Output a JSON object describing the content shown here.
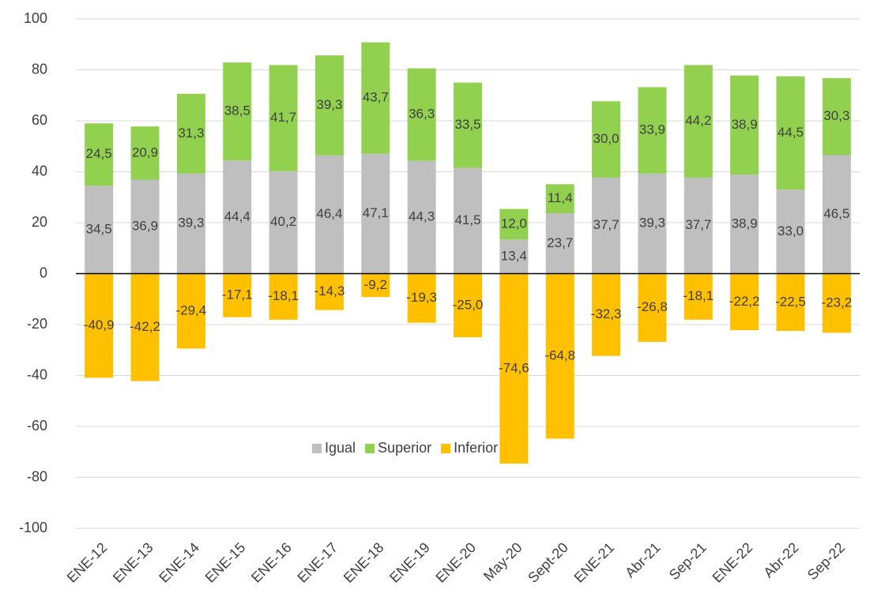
{
  "chart_data": {
    "type": "stacked_bar",
    "categories": [
      "ENE-12",
      "ENE-13",
      "ENE-14",
      "ENE-15",
      "ENE-16",
      "ENE-17",
      "ENE-18",
      "ENE-19",
      "ENE-20",
      "May-20",
      "Sept-20",
      "ENE-21",
      "Abr-21",
      "Sep-21",
      "ENE-22",
      "Abr-22",
      "Sep-22"
    ],
    "series": [
      {
        "name": "Igual",
        "color": "#bfbfbf",
        "values": [
          34.5,
          36.9,
          39.3,
          44.4,
          40.2,
          46.4,
          47.1,
          44.3,
          41.5,
          13.4,
          23.7,
          37.7,
          39.3,
          37.7,
          38.9,
          33.0,
          46.5
        ],
        "value_labels": [
          "34,5",
          "36,9",
          "39,3",
          "44,4",
          "40,2",
          "46,4",
          "47,1",
          "44,3",
          "41,5",
          "13,4",
          "23,7",
          "37,7",
          "39,3",
          "37,7",
          "38,9",
          "33,0",
          "46,5"
        ]
      },
      {
        "name": "Superior",
        "color": "#92d050",
        "values": [
          24.5,
          20.9,
          31.3,
          38.5,
          41.7,
          39.3,
          43.7,
          36.3,
          33.5,
          12.0,
          11.4,
          30.0,
          33.9,
          44.2,
          38.9,
          44.5,
          30.3
        ],
        "value_labels": [
          "24,5",
          "20,9",
          "31,3",
          "38,5",
          "41,7",
          "39,3",
          "43,7",
          "36,3",
          "33,5",
          "12,0",
          "11,4",
          "30,0",
          "33,9",
          "44,2",
          "38,9",
          "44,5",
          "30,3"
        ]
      },
      {
        "name": "Inferior",
        "color": "#ffc000",
        "values": [
          -40.9,
          -42.2,
          -29.4,
          -17.1,
          -18.1,
          -14.3,
          -9.2,
          -19.3,
          -25.0,
          -74.6,
          -64.8,
          -32.3,
          -26.8,
          -18.1,
          -22.2,
          -22.5,
          -23.2
        ],
        "value_labels": [
          "-40,9",
          "-42,2",
          "-29,4",
          "-17,1",
          "-18,1",
          "-14,3",
          "-9,2",
          "-19,3",
          "-25,0",
          "-74,6",
          "-64,8",
          "-32,3",
          "-26,8",
          "-18,1",
          "-22,2",
          "-22,5",
          "-23,2"
        ]
      }
    ],
    "ylim": [
      -100,
      100
    ],
    "yticks": [
      -100,
      -80,
      -60,
      -40,
      -20,
      0,
      20,
      40,
      60,
      80,
      100
    ],
    "grid": true,
    "legend": "inside-bottom"
  }
}
